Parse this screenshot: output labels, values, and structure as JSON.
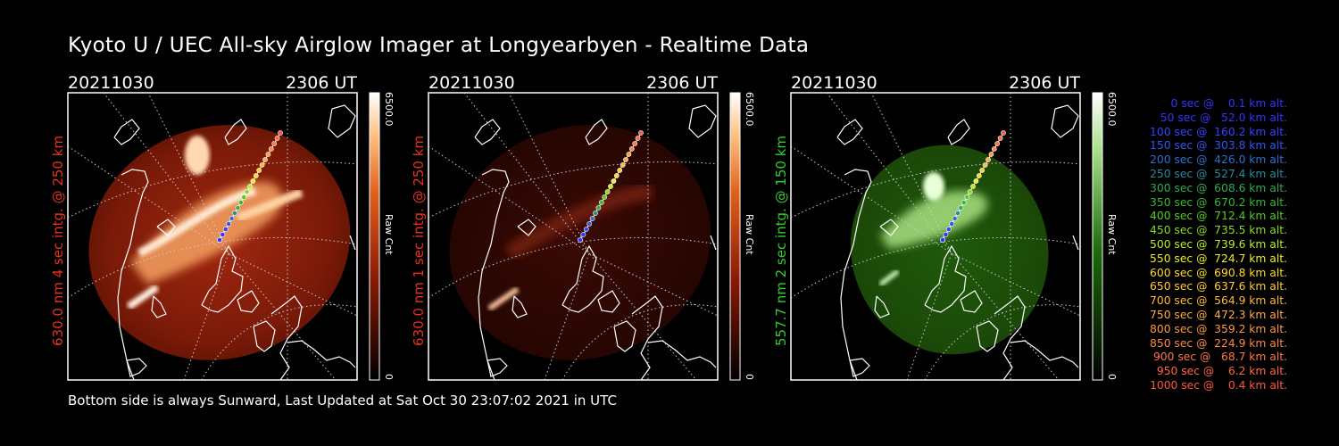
{
  "title": "Kyoto U / UEC All-sky Airglow Imager at Longyearbyen - Realtime Data",
  "footer": "Bottom side is always Sunward, Last Updated at Sat Oct 30 23:07:02 2021 in UTC",
  "colors": {
    "red_label": "#e8321e",
    "green_label": "#33cc33",
    "background": "#000000"
  },
  "chart_data": [
    {
      "type": "heatmap",
      "date": "20211030",
      "time": "2306 UT",
      "ylabel": "630.0 nm 4 sec intg. @ 250 km",
      "colorbar": {
        "max_label": "6500.0",
        "min_label": "0",
        "unit_label": "Raw Cnt",
        "range": [
          0,
          6500
        ],
        "color": "red"
      }
    },
    {
      "type": "heatmap",
      "date": "20211030",
      "time": "2306 UT",
      "ylabel": "630.0 nm 1 sec intg. @ 250 km",
      "colorbar": {
        "max_label": "6500.0",
        "min_label": "0",
        "unit_label": "Raw Cnt",
        "range": [
          0,
          6500
        ],
        "color": "red"
      }
    },
    {
      "type": "heatmap",
      "date": "20211030",
      "time": "2306 UT",
      "ylabel": "557.7 nm 2 sec intg. @ 150 km",
      "colorbar": {
        "max_label": "6500.0",
        "min_label": "0",
        "unit_label": "Raw Cnt",
        "range": [
          0,
          6500
        ],
        "color": "green"
      }
    }
  ],
  "legend": [
    {
      "text": "0 sec @    0.1 km alt.",
      "color": "#3333ff"
    },
    {
      "text": "50 sec @   52.0 km alt.",
      "color": "#3333ff"
    },
    {
      "text": "100 sec @  160.2 km alt.",
      "color": "#3344ff"
    },
    {
      "text": "150 sec @  303.8 km alt.",
      "color": "#3355ee"
    },
    {
      "text": "200 sec @  426.0 km alt.",
      "color": "#2e6fcc"
    },
    {
      "text": "250 sec @  527.4 km alt.",
      "color": "#2a8a9a"
    },
    {
      "text": "300 sec @  608.6 km alt.",
      "color": "#33aa55"
    },
    {
      "text": "350 sec @  670.2 km alt.",
      "color": "#33bb33"
    },
    {
      "text": "400 sec @  712.4 km alt.",
      "color": "#55cc22"
    },
    {
      "text": "450 sec @  735.5 km alt.",
      "color": "#88dd22"
    },
    {
      "text": "500 sec @  739.6 km alt.",
      "color": "#bbee22"
    },
    {
      "text": "550 sec @  724.7 km alt.",
      "color": "#eeee22"
    },
    {
      "text": "600 sec @  690.8 km alt.",
      "color": "#ffdd22"
    },
    {
      "text": "650 sec @  637.6 km alt.",
      "color": "#ffcc33"
    },
    {
      "text": "700 sec @  564.9 km alt.",
      "color": "#ffbb33"
    },
    {
      "text": "750 sec @  472.3 km alt.",
      "color": "#ffaa44"
    },
    {
      "text": "800 sec @  359.2 km alt.",
      "color": "#ff9944"
    },
    {
      "text": "850 sec @  224.9 km alt.",
      "color": "#ff8844"
    },
    {
      "text": "900 sec @   68.7 km alt.",
      "color": "#ff7744"
    },
    {
      "text": "950 sec @    6.2 km alt.",
      "color": "#ff6644"
    },
    {
      "text": "1000 sec @    0.4 km alt.",
      "color": "#ff5544"
    }
  ]
}
